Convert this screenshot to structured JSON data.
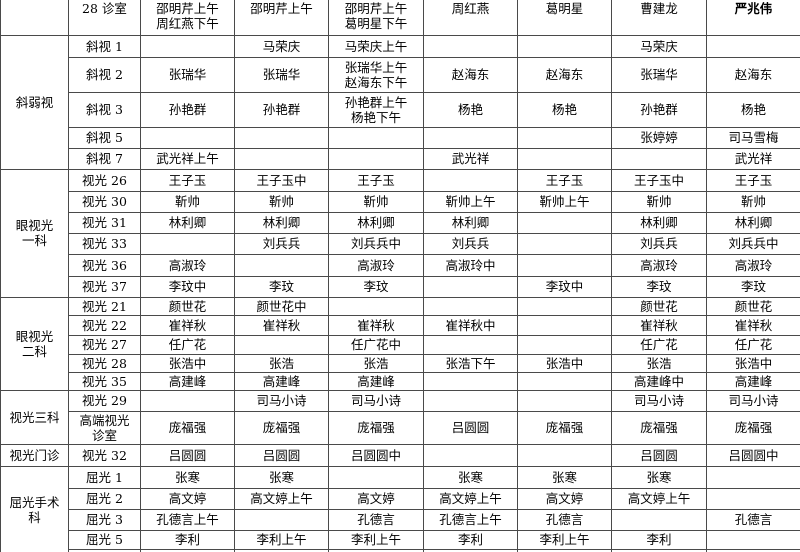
{
  "table": {
    "description": "clinic-duty-schedule",
    "sections": [
      {
        "group": "",
        "rows": [
          {
            "room": "28 诊室",
            "cells": [
              "邵明芹上午\n周红燕下午",
              "邵明芹上午",
              "邵明芹上午\n葛明星下午",
              "周红燕",
              "葛明星",
              "曹建龙",
              {
                "text": "严兆伟",
                "bold": true
              }
            ]
          }
        ]
      },
      {
        "group": "斜弱视",
        "rows": [
          {
            "room": "斜视 1",
            "cells": [
              "",
              "马荣庆",
              "马荣庆上午",
              "",
              "",
              "马荣庆",
              ""
            ]
          },
          {
            "room": "斜视 2",
            "cells": [
              "张瑞华",
              "张瑞华",
              "张瑞华上午\n赵海东下午",
              "赵海东",
              "赵海东",
              "张瑞华",
              "赵海东"
            ]
          },
          {
            "room": "斜视 3",
            "cells": [
              "孙艳群",
              "孙艳群",
              "孙艳群上午\n杨艳下午",
              "杨艳",
              "杨艳",
              "孙艳群",
              "杨艳"
            ]
          },
          {
            "room": "斜视 5",
            "cells": [
              "",
              "",
              "",
              "",
              "",
              "张婷婷",
              "司马雪梅"
            ]
          },
          {
            "room": "斜视 7",
            "cells": [
              "武光祥上午",
              "",
              "",
              "武光祥",
              "",
              "",
              "武光祥"
            ]
          }
        ]
      },
      {
        "group": "眼视光\n一科",
        "rows": [
          {
            "room": "视光 26",
            "cells": [
              "王子玉",
              "王子玉中",
              "王子玉",
              "",
              "王子玉",
              "王子玉中",
              "王子玉"
            ]
          },
          {
            "room": "视光 30",
            "cells": [
              "靳帅",
              "靳帅",
              "靳帅",
              "靳帅上午",
              "靳帅上午",
              "靳帅",
              "靳帅"
            ]
          },
          {
            "room": "视光 31",
            "cells": [
              "林利卿",
              "林利卿",
              "林利卿",
              "林利卿",
              "",
              "林利卿",
              "林利卿"
            ]
          },
          {
            "room": "视光 33",
            "cells": [
              "",
              "刘兵兵",
              "刘兵兵中",
              "刘兵兵",
              "",
              "刘兵兵",
              "刘兵兵中"
            ]
          },
          {
            "room": "视光 36",
            "cells": [
              "高淑玲",
              "",
              "高淑玲",
              "高淑玲中",
              "",
              "高淑玲",
              "高淑玲"
            ]
          },
          {
            "room": "视光 37",
            "cells": [
              "李玟中",
              "李玟",
              "李玟",
              "",
              "李玟中",
              "李玟",
              "李玟"
            ]
          }
        ]
      },
      {
        "group": "眼视光\n二科",
        "rows": [
          {
            "room": "视光 21",
            "cells": [
              "颜世花",
              "颜世花中",
              "",
              "",
              "",
              "颜世花",
              "颜世花"
            ]
          },
          {
            "room": "视光 22",
            "cells": [
              "崔祥秋",
              "崔祥秋",
              "崔祥秋",
              "崔祥秋中",
              "",
              "崔祥秋",
              "崔祥秋"
            ]
          },
          {
            "room": "视光 27",
            "cells": [
              "任广花",
              "",
              "任广花中",
              "",
              "",
              "任广花",
              "任广花"
            ]
          },
          {
            "room": "视光 28",
            "cells": [
              "张浩中",
              "张浩",
              "张浩",
              "张浩下午",
              "张浩中",
              "张浩",
              "张浩中"
            ]
          },
          {
            "room": "视光 35",
            "cells": [
              "高建峰",
              "高建峰",
              "高建峰",
              "",
              "",
              "高建峰中",
              "高建峰"
            ]
          }
        ]
      },
      {
        "group": "视光三科",
        "rows": [
          {
            "room": "视光 29",
            "cells": [
              "",
              "司马小诗",
              "司马小诗",
              "",
              "",
              "司马小诗",
              "司马小诗"
            ]
          },
          {
            "room": "高端视光\n诊室",
            "cells": [
              "庞福强",
              "庞福强",
              "庞福强",
              "吕圆圆",
              "庞福强",
              "庞福强",
              "庞福强"
            ]
          }
        ]
      },
      {
        "group": "视光门诊",
        "rows": [
          {
            "room": "视光 32",
            "cells": [
              "吕圆圆",
              "吕圆圆",
              "吕圆圆中",
              "",
              "",
              "吕圆圆",
              "吕圆圆中"
            ]
          }
        ]
      },
      {
        "group": "屈光手术\n科",
        "rows": [
          {
            "room": "屈光 1",
            "cells": [
              "张寒",
              "张寒",
              "",
              "张寒",
              "张寒",
              "张寒",
              ""
            ]
          },
          {
            "room": "屈光 2",
            "cells": [
              "高文婷",
              "高文婷上午",
              "高文婷",
              "高文婷上午",
              "高文婷",
              "高文婷上午",
              ""
            ]
          },
          {
            "room": "屈光 3",
            "cells": [
              "孔德言上午",
              "",
              "孔德言",
              "孔德言上午",
              "孔德言",
              "",
              "孔德言"
            ]
          },
          {
            "room": "屈光 5",
            "cells": [
              "李利",
              "李利上午",
              "李利上午",
              "李利",
              "李利上午",
              "李利",
              ""
            ]
          },
          {
            "room": "",
            "cells": [
              "",
              "",
              "",
              "",
              "",
              "",
              ""
            ],
            "partial": true
          }
        ]
      }
    ]
  }
}
